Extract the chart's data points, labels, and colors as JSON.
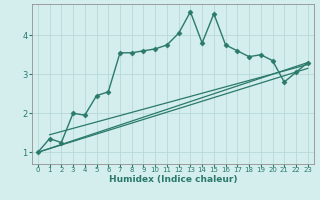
{
  "title": "",
  "xlabel": "Humidex (Indice chaleur)",
  "ylabel": "",
  "xlim": [
    -0.5,
    23.5
  ],
  "ylim": [
    0.7,
    4.8
  ],
  "xticks": [
    0,
    1,
    2,
    3,
    4,
    5,
    6,
    7,
    8,
    9,
    10,
    11,
    12,
    13,
    14,
    15,
    16,
    17,
    18,
    19,
    20,
    21,
    22,
    23
  ],
  "yticks": [
    1,
    2,
    3,
    4
  ],
  "background_color": "#d4eded",
  "grid_color": "#b8d8d8",
  "line_color": "#2a7a6a",
  "jagged_line": {
    "x": [
      0,
      1,
      2,
      3,
      4,
      5,
      6,
      7,
      8,
      9,
      10,
      11,
      12,
      13,
      14,
      15,
      16,
      17,
      18,
      19,
      20,
      21,
      22,
      23
    ],
    "y": [
      1.0,
      1.35,
      1.25,
      2.0,
      1.95,
      2.45,
      2.55,
      3.55,
      3.55,
      3.6,
      3.65,
      3.75,
      4.05,
      4.6,
      3.8,
      4.55,
      3.75,
      3.6,
      3.45,
      3.5,
      3.35,
      2.8,
      3.05,
      3.3
    ],
    "marker": "D",
    "markersize": 2.5,
    "linewidth": 1.0
  },
  "smooth_lines": [
    {
      "x": [
        0,
        23
      ],
      "y": [
        1.0,
        3.3
      ],
      "linewidth": 0.9
    },
    {
      "x": [
        0,
        23
      ],
      "y": [
        1.0,
        3.15
      ],
      "linewidth": 0.9
    },
    {
      "x": [
        1,
        23
      ],
      "y": [
        1.45,
        3.25
      ],
      "linewidth": 0.9
    }
  ]
}
